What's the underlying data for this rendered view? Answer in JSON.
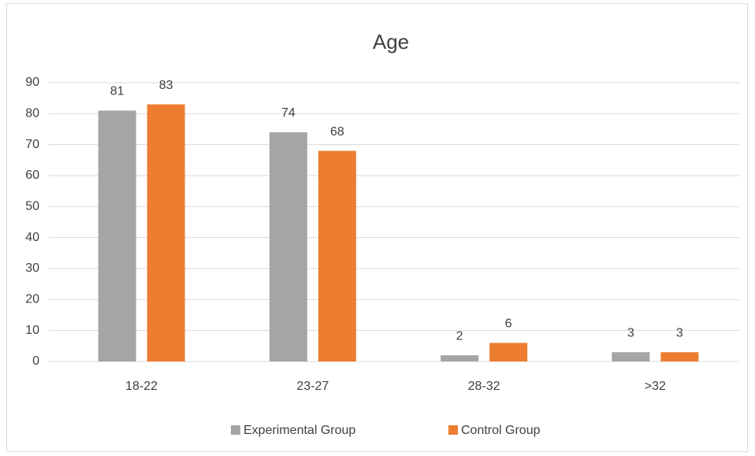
{
  "chart_data": {
    "type": "bar",
    "title": "Age",
    "categories": [
      "18-22",
      "23-27",
      "28-32",
      ">32"
    ],
    "series": [
      {
        "name": "Experimental Group",
        "color": "#a5a5a5",
        "values": [
          81,
          74,
          2,
          3
        ]
      },
      {
        "name": "Control Group",
        "color": "#ed7d31",
        "values": [
          83,
          68,
          6,
          3
        ]
      }
    ],
    "ylim": [
      0,
      90
    ],
    "yticks": [
      0,
      10,
      20,
      30,
      40,
      50,
      60,
      70,
      80,
      90
    ],
    "grid": true,
    "legend": "bottom"
  }
}
